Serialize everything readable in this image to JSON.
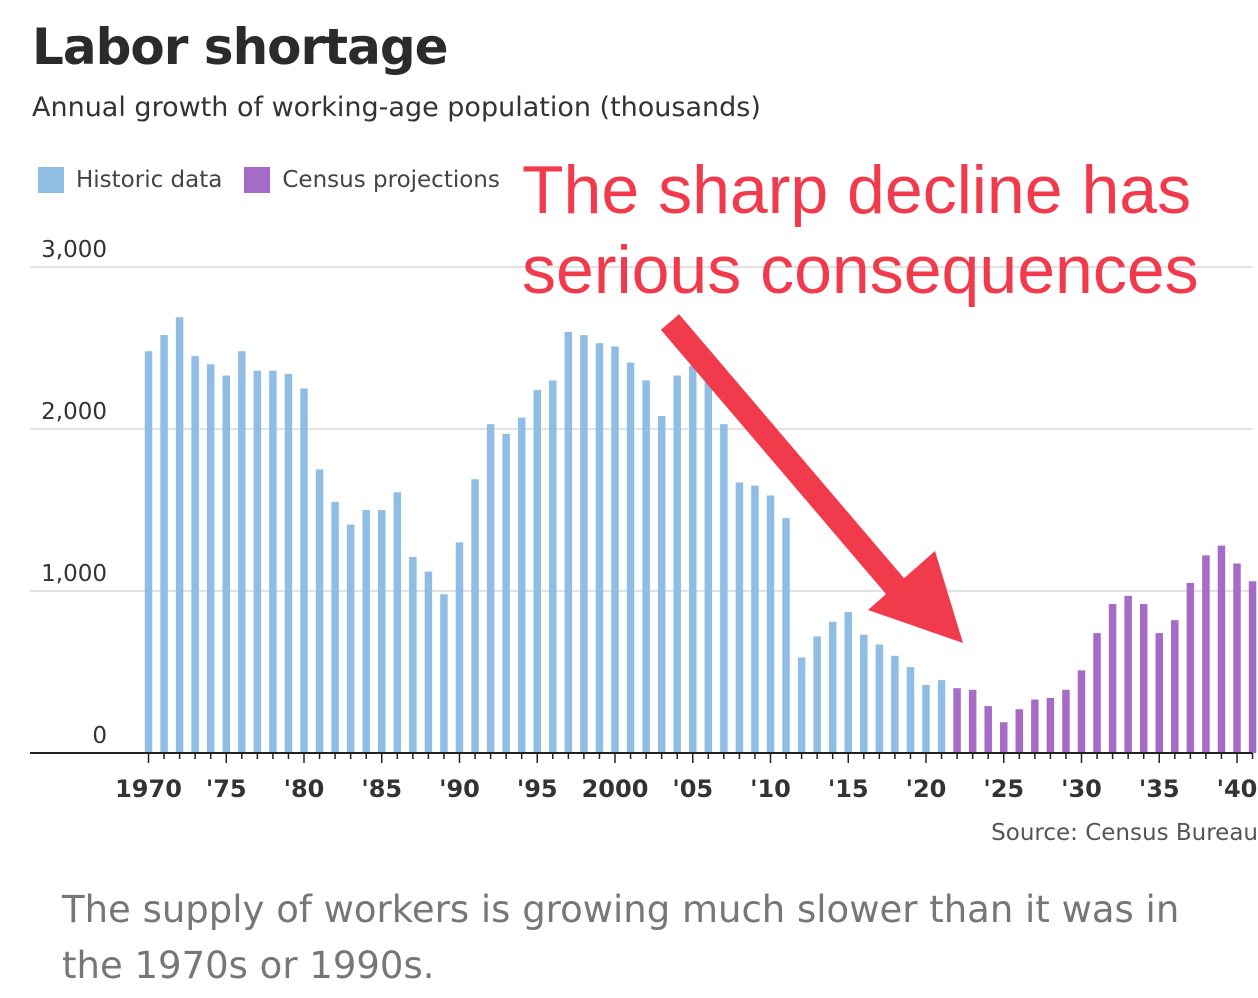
{
  "header": {
    "title": "Labor shortage",
    "subtitle": "Annual growth of working-age population (thousands)"
  },
  "legend": {
    "items": [
      {
        "label": "Historic data",
        "color": "#8fbde4"
      },
      {
        "label": "Census projections",
        "color": "#a56bc6"
      }
    ]
  },
  "annotation": {
    "line1": "The sharp decline has",
    "line2": "serious consequences",
    "color": "#f23a4d"
  },
  "source": "Source: Census Bureau",
  "caption": "The supply of workers is growing much slower than it was in the 1970s or 1990s.",
  "chart_data": {
    "type": "bar",
    "title": "Labor shortage",
    "subtitle": "Annual growth of working-age population (thousands)",
    "ylim": [
      0,
      3000
    ],
    "yticks": [
      "3,000",
      "2,000",
      "1,000",
      "0"
    ],
    "ytick_values": [
      3000,
      2000,
      1000,
      0
    ],
    "xticks": [
      {
        "year": 1970,
        "label": "1970"
      },
      {
        "year": 1975,
        "label": "'75"
      },
      {
        "year": 1980,
        "label": "'80"
      },
      {
        "year": 1985,
        "label": "'85"
      },
      {
        "year": 1990,
        "label": "'90"
      },
      {
        "year": 1995,
        "label": "'95"
      },
      {
        "year": 2000,
        "label": "2000"
      },
      {
        "year": 2005,
        "label": "'05"
      },
      {
        "year": 2010,
        "label": "'10"
      },
      {
        "year": 2015,
        "label": "'15"
      },
      {
        "year": 2020,
        "label": "'20"
      },
      {
        "year": 2025,
        "label": "'25"
      },
      {
        "year": 2030,
        "label": "'30"
      },
      {
        "year": 2035,
        "label": "'35"
      },
      {
        "year": 2040,
        "label": "'40"
      }
    ],
    "grid": true,
    "legend_position": "top-left",
    "series": [
      {
        "name": "Historic data",
        "color": "#8fbde4",
        "x": [
          1970,
          1971,
          1972,
          1973,
          1974,
          1975,
          1976,
          1977,
          1978,
          1979,
          1980,
          1981,
          1982,
          1983,
          1984,
          1985,
          1986,
          1987,
          1988,
          1989,
          1990,
          1991,
          1992,
          1993,
          1994,
          1995,
          1996,
          1997,
          1998,
          1999,
          2000,
          2001,
          2002,
          2003,
          2004,
          2005,
          2006,
          2007,
          2008,
          2009,
          2010,
          2011,
          2012,
          2013,
          2014,
          2015,
          2016,
          2017,
          2018,
          2019,
          2020,
          2021
        ],
        "values": [
          2480,
          2580,
          2690,
          2450,
          2400,
          2330,
          2480,
          2360,
          2360,
          2340,
          2250,
          1750,
          1550,
          1410,
          1500,
          1500,
          1610,
          1210,
          1120,
          980,
          1300,
          1690,
          2030,
          1970,
          2070,
          2240,
          2300,
          2600,
          2580,
          2530,
          2510,
          2410,
          2300,
          2080,
          2330,
          2390,
          2330,
          2030,
          1670,
          1650,
          1590,
          1450,
          590,
          720,
          810,
          870,
          730,
          670,
          600,
          530,
          420,
          450
        ]
      },
      {
        "name": "Census projections",
        "color": "#a56bc6",
        "x": [
          2022,
          2023,
          2024,
          2025,
          2026,
          2027,
          2028,
          2029,
          2030,
          2031,
          2032,
          2033,
          2034,
          2035,
          2036,
          2037,
          2038,
          2039,
          2040,
          2041
        ],
        "values": [
          400,
          390,
          290,
          190,
          270,
          330,
          340,
          390,
          510,
          740,
          920,
          970,
          920,
          740,
          820,
          1050,
          1220,
          1280,
          1170,
          1060
        ]
      }
    ]
  }
}
